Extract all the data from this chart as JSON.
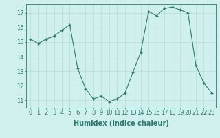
{
  "x": [
    0,
    1,
    2,
    3,
    4,
    5,
    6,
    7,
    8,
    9,
    10,
    11,
    12,
    13,
    14,
    15,
    16,
    17,
    18,
    19,
    20,
    21,
    22,
    23
  ],
  "y": [
    15.2,
    14.9,
    15.2,
    15.4,
    15.8,
    16.2,
    13.2,
    11.8,
    11.1,
    11.3,
    10.9,
    11.1,
    11.5,
    12.9,
    14.3,
    17.1,
    16.8,
    17.3,
    17.4,
    17.2,
    17.0,
    13.4,
    12.2,
    11.5
  ],
  "bg_color": "#cff0ec",
  "line_color": "#2d7a6b",
  "marker_color": "#2d7a6b",
  "grid_color": "#b8ddd8",
  "axis_color": "#2d7a6b",
  "xlabel": "Humidex (Indice chaleur)",
  "xlim": [
    -0.5,
    23.5
  ],
  "ylim": [
    10.5,
    17.6
  ],
  "yticks": [
    11,
    12,
    13,
    14,
    15,
    16,
    17
  ],
  "xticks": [
    0,
    1,
    2,
    3,
    4,
    5,
    6,
    7,
    8,
    9,
    10,
    11,
    12,
    13,
    14,
    15,
    16,
    17,
    18,
    19,
    20,
    21,
    22,
    23
  ],
  "xlabel_fontsize": 7,
  "tick_fontsize": 6
}
